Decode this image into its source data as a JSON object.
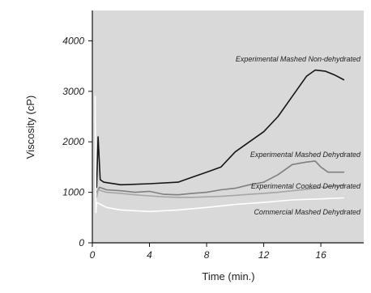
{
  "chart_data": {
    "type": "line",
    "title": "",
    "xlabel": "Time (min.)",
    "ylabel": "Viscosity (cP)",
    "xlim": [
      0,
      19
    ],
    "ylim": [
      0,
      4600
    ],
    "x_ticks": [
      "0",
      "4",
      "8",
      "12",
      "16"
    ],
    "y_ticks": [
      "0",
      "1000",
      "2000",
      "3000",
      "4000"
    ],
    "grid": false,
    "plot_background": "#d9d9d9",
    "series": [
      {
        "name": "Experimental Mashed Non-dehydrated",
        "color": "#151515",
        "points": [
          [
            0.3,
            1100
          ],
          [
            0.4,
            2100
          ],
          [
            0.55,
            1250
          ],
          [
            0.8,
            1200
          ],
          [
            2,
            1150
          ],
          [
            4,
            1170
          ],
          [
            6,
            1200
          ],
          [
            7,
            1300
          ],
          [
            8,
            1400
          ],
          [
            9,
            1500
          ],
          [
            10,
            1800
          ],
          [
            11,
            2000
          ],
          [
            12,
            2200
          ],
          [
            13,
            2500
          ],
          [
            14,
            2900
          ],
          [
            15,
            3300
          ],
          [
            15.6,
            3420
          ],
          [
            16.3,
            3400
          ],
          [
            17,
            3320
          ],
          [
            17.6,
            3230
          ]
        ]
      },
      {
        "name": "Experimental Mashed Dehydrated",
        "color": "#7f7f7f",
        "points": [
          [
            0.3,
            1000
          ],
          [
            0.5,
            1100
          ],
          [
            1,
            1050
          ],
          [
            2,
            1030
          ],
          [
            3,
            1000
          ],
          [
            4,
            1020
          ],
          [
            5,
            960
          ],
          [
            6,
            950
          ],
          [
            7,
            980
          ],
          [
            8,
            1000
          ],
          [
            9,
            1050
          ],
          [
            10,
            1080
          ],
          [
            11,
            1150
          ],
          [
            12,
            1200
          ],
          [
            13,
            1350
          ],
          [
            14,
            1550
          ],
          [
            15,
            1600
          ],
          [
            15.6,
            1620
          ],
          [
            16,
            1500
          ],
          [
            16.5,
            1400
          ],
          [
            17.6,
            1400
          ]
        ]
      },
      {
        "name": "Experimental Cooked Dehydrated",
        "color": "#a6a6a6",
        "points": [
          [
            0.3,
            900
          ],
          [
            0.4,
            1050
          ],
          [
            1,
            1000
          ],
          [
            2,
            980
          ],
          [
            3,
            950
          ],
          [
            4,
            930
          ],
          [
            5,
            910
          ],
          [
            6,
            900
          ],
          [
            7,
            900
          ],
          [
            8,
            910
          ],
          [
            9,
            920
          ],
          [
            10,
            940
          ],
          [
            11,
            960
          ],
          [
            12,
            980
          ],
          [
            13,
            1000
          ],
          [
            14,
            1030
          ],
          [
            15,
            1060
          ],
          [
            16,
            1100
          ],
          [
            17.6,
            1140
          ]
        ]
      },
      {
        "name": "Commercial Mashed Dehydrated",
        "color": "#ffffff",
        "points": [
          [
            0.2,
            2900
          ],
          [
            0.25,
            600
          ],
          [
            0.3,
            800
          ],
          [
            1,
            700
          ],
          [
            2,
            650
          ],
          [
            4,
            620
          ],
          [
            6,
            650
          ],
          [
            8,
            700
          ],
          [
            10,
            760
          ],
          [
            12,
            800
          ],
          [
            14,
            850
          ],
          [
            16,
            870
          ],
          [
            17.6,
            890
          ]
        ]
      }
    ]
  }
}
